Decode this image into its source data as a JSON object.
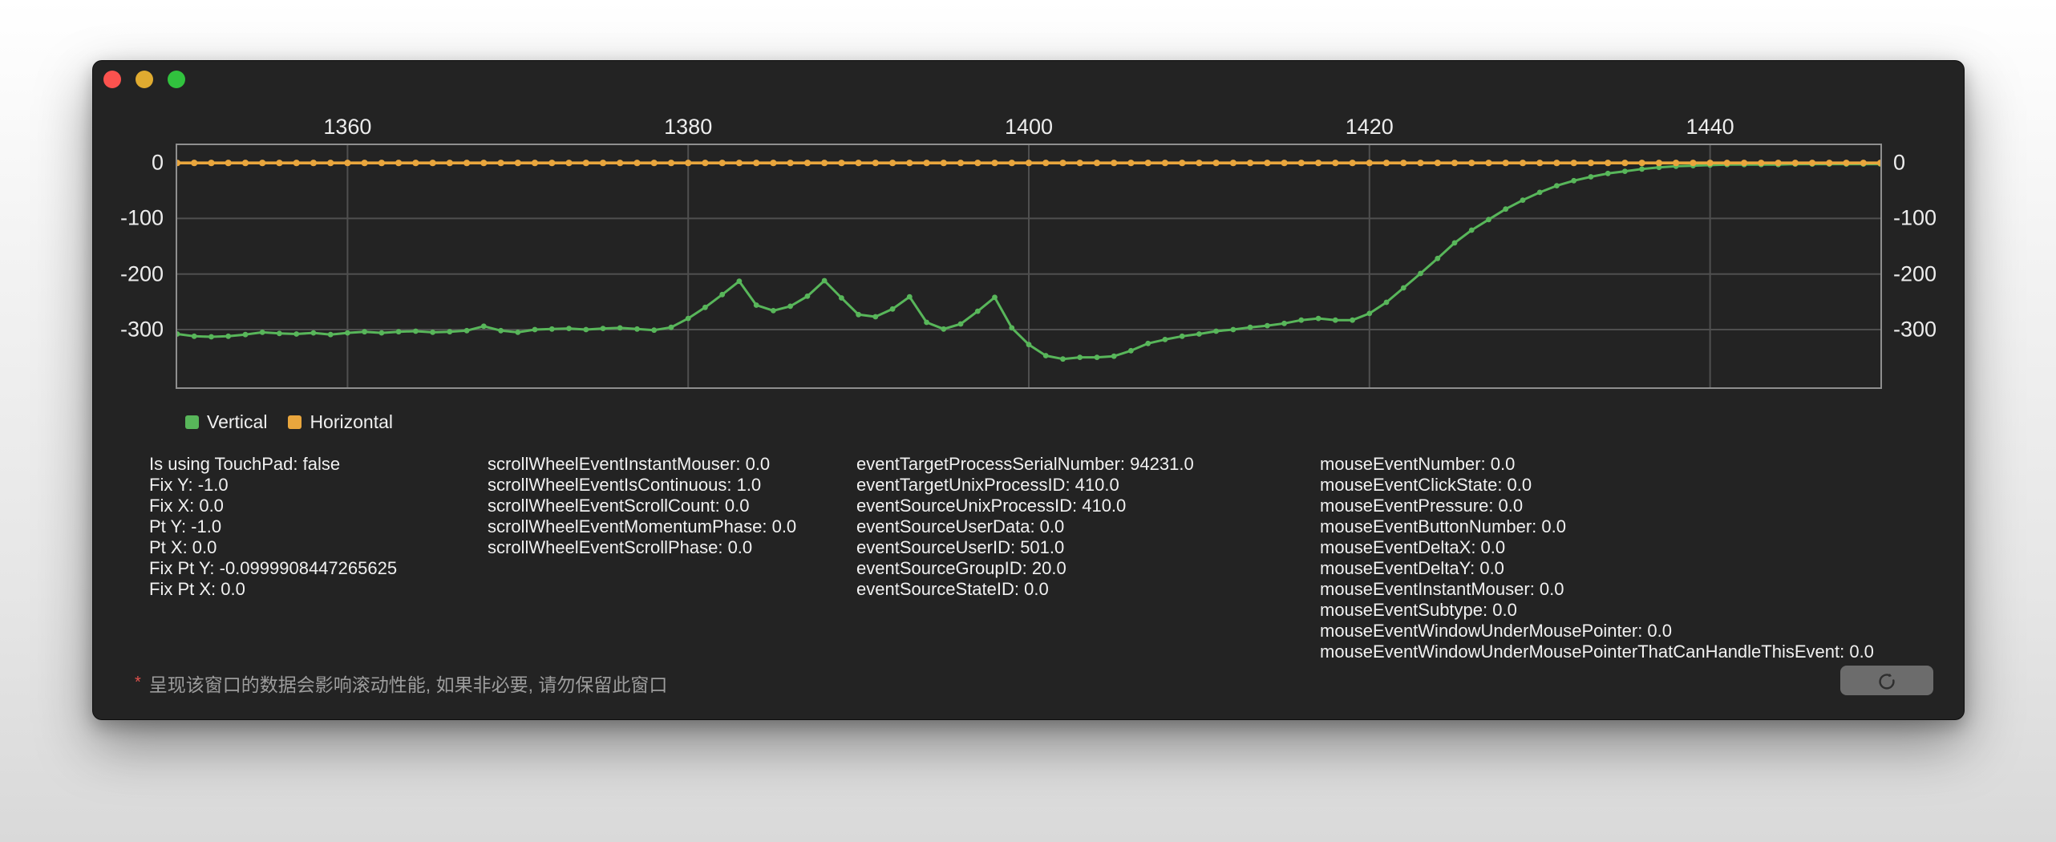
{
  "window": {
    "traffic_lights": {
      "close_color": "#fb524e",
      "minimize_color": "#e0ab30",
      "zoom_color": "#31c23e"
    }
  },
  "legend": {
    "items": [
      {
        "label": "Vertical",
        "color": "#58b65a"
      },
      {
        "label": "Horizontal",
        "color": "#e9a63d"
      }
    ]
  },
  "info_columns": {
    "col1": [
      "Is using TouchPad: false",
      "Fix Y: -1.0",
      "Fix X: 0.0",
      "Pt Y: -1.0",
      "Pt X: 0.0",
      "Fix Pt Y: -0.0999908447265625",
      "Fix Pt X: 0.0"
    ],
    "col2": [
      "scrollWheelEventInstantMouser: 0.0",
      "scrollWheelEventIsContinuous: 1.0",
      "scrollWheelEventScrollCount: 0.0",
      "scrollWheelEventMomentumPhase: 0.0",
      "scrollWheelEventScrollPhase: 0.0"
    ],
    "col3": [
      "eventTargetProcessSerialNumber: 94231.0",
      "eventTargetUnixProcessID: 410.0",
      "eventSourceUnixProcessID: 410.0",
      "eventSourceUserData: 0.0",
      "eventSourceUserID: 501.0",
      "eventSourceGroupID: 20.0",
      "eventSourceStateID: 0.0"
    ],
    "col4": [
      "mouseEventNumber: 0.0",
      "mouseEventClickState: 0.0",
      "mouseEventPressure: 0.0",
      "mouseEventButtonNumber: 0.0",
      "mouseEventDeltaX: 0.0",
      "mouseEventDeltaY: 0.0",
      "mouseEventInstantMouser: 0.0",
      "mouseEventSubtype: 0.0",
      "mouseEventWindowUnderMousePointer: 0.0",
      "mouseEventWindowUnderMousePointerThatCanHandleThisEvent: 0.0"
    ]
  },
  "footer": {
    "note_marker": "*",
    "note_text": "呈现该窗口的数据会影响滚动性能, 如果非必要, 请勿保留此窗口",
    "refresh_icon": "refresh-circular-arrow-icon"
  },
  "chart_data": {
    "type": "line",
    "title": "",
    "xlabel": "",
    "ylabel": "",
    "x_start": 1350,
    "x_step": 1,
    "xlim": [
      1350,
      1450
    ],
    "ylim": [
      -404,
      32
    ],
    "x_ticks": [
      1360,
      1380,
      1400,
      1420,
      1440
    ],
    "y_ticks": [
      0,
      -100,
      -200,
      -300
    ],
    "grid": true,
    "legend_position": "bottom-left",
    "grid_color": "#4f4f4f",
    "border_color": "#8f8f8f",
    "series": [
      {
        "name": "Vertical",
        "color": "#58b65a",
        "line_width": 3,
        "marker_radius": 3.4,
        "values": [
          -308,
          -312,
          -313,
          -312,
          -309,
          -305,
          -307,
          -308,
          -306,
          -309,
          -306,
          -304,
          -306,
          -304,
          -303,
          -305,
          -304,
          -302,
          -294,
          -302,
          -305,
          -300,
          -299,
          -298,
          -300,
          -298,
          -297,
          -299,
          -301,
          -296,
          -280,
          -260,
          -237,
          -213,
          -256,
          -266,
          -258,
          -240,
          -212,
          -243,
          -273,
          -277,
          -263,
          -241,
          -287,
          -299,
          -290,
          -267,
          -242,
          -297,
          -327,
          -347,
          -353,
          -350,
          -350,
          -348,
          -338,
          -325,
          -318,
          -312,
          -308,
          -303,
          -300,
          -296,
          -293,
          -289,
          -283,
          -280,
          -283,
          -283,
          -271,
          -251,
          -225,
          -199,
          -172,
          -144,
          -121,
          -102,
          -83,
          -67,
          -53,
          -41,
          -32,
          -25,
          -19,
          -15,
          -11,
          -8,
          -6,
          -5,
          -4,
          -3,
          -3,
          -3,
          -3,
          -2,
          -2,
          -2,
          -2,
          -2,
          -2
        ]
      },
      {
        "name": "Horizontal",
        "color": "#e9a63d",
        "line_width": 3.6,
        "marker_radius": 4.1,
        "constant_value": 0,
        "count": 101
      }
    ]
  }
}
